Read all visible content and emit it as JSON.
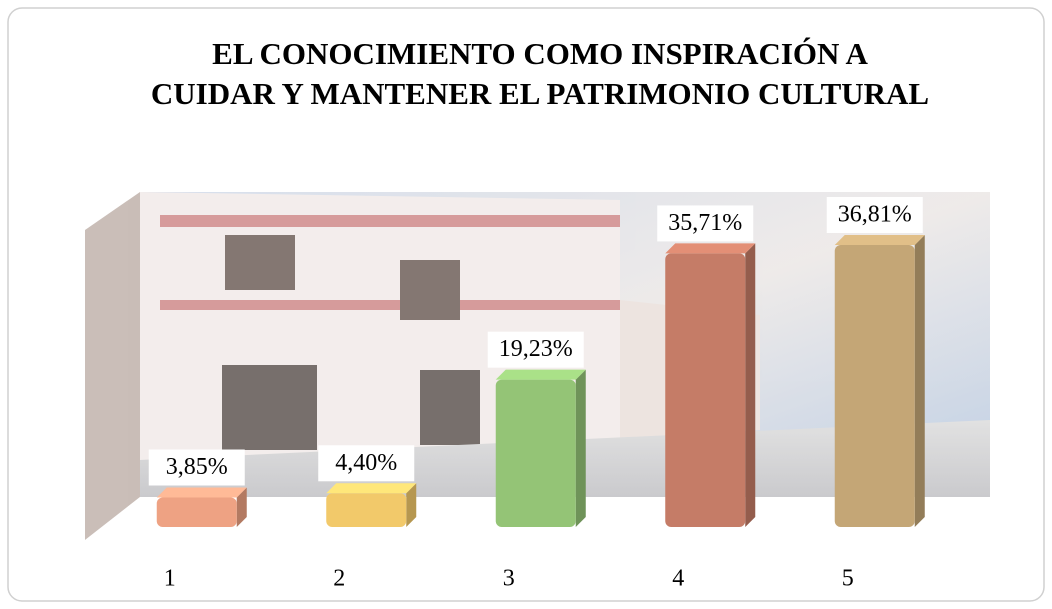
{
  "chart_data": {
    "type": "bar",
    "title": "EL CONOCIMIENTO COMO INSPIRACIÓN A CUIDAR Y MANTENER EL PATRIMONIO CULTURAL",
    "categories": [
      "1",
      "2",
      "3",
      "4",
      "5"
    ],
    "values": [
      3.85,
      4.4,
      19.23,
      35.71,
      36.81
    ],
    "value_labels": [
      "3,85%",
      "4,40%",
      "19,23%",
      "35,71%",
      "36,81%"
    ],
    "colors": [
      "#eea283",
      "#f2c96a",
      "#94c476",
      "#c57c67",
      "#c4a676"
    ]
  }
}
